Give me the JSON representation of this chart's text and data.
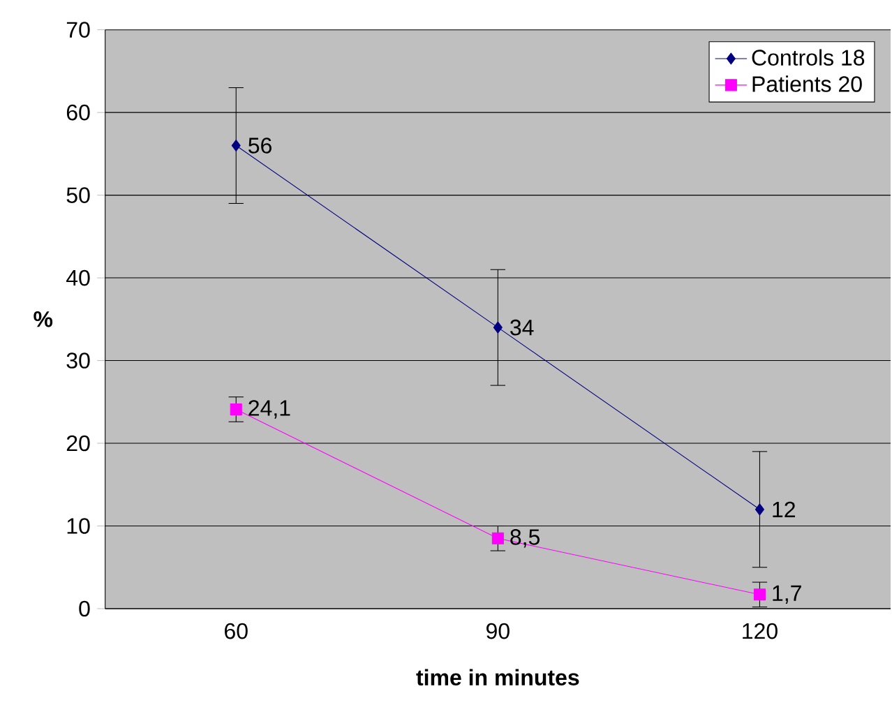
{
  "chart_data": {
    "type": "line",
    "xlabel": "time in minutes",
    "ylabel": "%",
    "categories": [
      "60",
      "90",
      "120"
    ],
    "series": [
      {
        "name": "Controls 18",
        "color": "#000080",
        "marker": "diamond",
        "values": [
          56,
          34,
          12
        ],
        "errors": [
          7,
          7,
          7
        ],
        "value_labels": [
          "56",
          "34",
          "12"
        ]
      },
      {
        "name": "Patients 20",
        "color": "#ff00ff",
        "marker": "square",
        "values": [
          24.1,
          8.5,
          1.7
        ],
        "errors": [
          1.5,
          1.5,
          1.5
        ],
        "value_labels": [
          "24,1",
          "8,5",
          "1,7"
        ]
      }
    ],
    "ylim": [
      0,
      70
    ],
    "yticks": [
      0,
      10,
      20,
      30,
      40,
      50,
      60,
      70
    ],
    "grid": "y",
    "legend": "top right",
    "line_style": "solid"
  }
}
